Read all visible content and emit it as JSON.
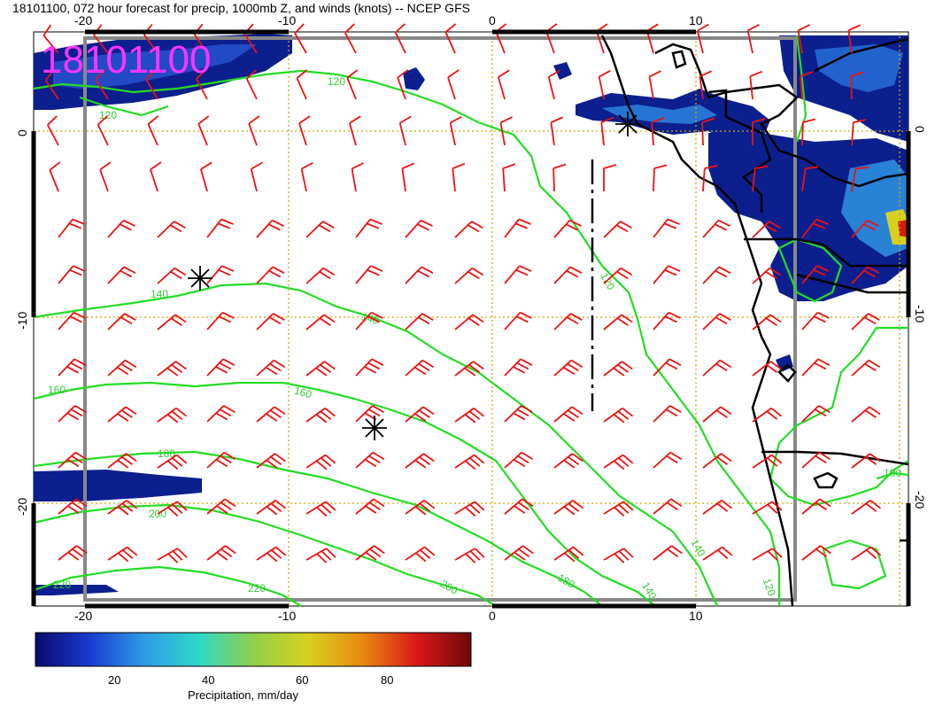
{
  "title": "18101100, 072 hour forecast for precip, 1000mb Z, and winds (knots) -- NCEP GFS",
  "date_stamp": "18101100",
  "colors": {
    "contour": "#22dd22",
    "wind_barb": "#ee1111",
    "grid": "#ccaa00",
    "coast": "#000000",
    "frame": "#888888",
    "stamp": "#ff33ff",
    "precip_low": "#0a1a8a",
    "precip_mid": "#2a60d8"
  },
  "axes": {
    "top_ticks": [
      "-20",
      "-10",
      "0",
      "10"
    ],
    "bottom_ticks": [
      "-20",
      "-10",
      "0",
      "10"
    ],
    "left_ticks": [
      "0",
      "-10",
      "-20"
    ],
    "right_ticks": [
      "0",
      "-10",
      "-20"
    ]
  },
  "contour_labels": [
    "120",
    "120",
    "120",
    "140",
    "140",
    "140",
    "160",
    "160",
    "180",
    "180",
    "200",
    "200",
    "220",
    "220",
    "140",
    "120",
    "100"
  ],
  "colorbar": {
    "ticks": [
      "20",
      "40",
      "60",
      "80"
    ],
    "label": "Precipitation, mm/day",
    "stops": [
      "#0a0a6e",
      "#1a3bd0",
      "#2f9be8",
      "#2fd8c8",
      "#8fd04a",
      "#d8d020",
      "#e88a10",
      "#d81818",
      "#6e0a0a"
    ]
  }
}
